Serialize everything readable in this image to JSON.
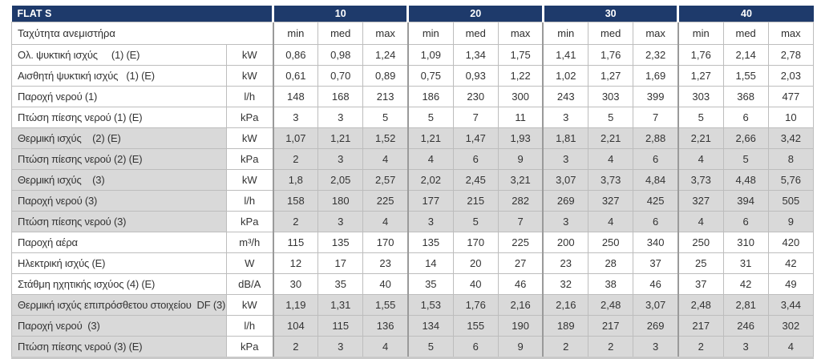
{
  "table": {
    "product": "FLAT S",
    "fan_speed_label": "Ταχύτητα ανεμιστήρα",
    "groups": [
      "10",
      "20",
      "30",
      "40"
    ],
    "subheaders": [
      "min",
      "med",
      "max"
    ],
    "colors": {
      "header_bg": "#1e3a6b",
      "header_text": "#ffffff",
      "gray_band": "#d9d9d9",
      "white_band": "#ffffff",
      "grid_line": "#bdbdbd"
    },
    "rows": [
      {
        "label": "Ολ. ψυκτική ισχύς     (1) (E)",
        "unit": "kW",
        "band": "white",
        "values": [
          "0,86",
          "0,98",
          "1,24",
          "1,09",
          "1,34",
          "1,75",
          "1,41",
          "1,76",
          "2,32",
          "1,76",
          "2,14",
          "2,78"
        ]
      },
      {
        "label": "Αισθητή ψυκτική ισχύς   (1) (E)",
        "unit": "kW",
        "band": "white",
        "values": [
          "0,61",
          "0,70",
          "0,89",
          "0,75",
          "0,93",
          "1,22",
          "1,02",
          "1,27",
          "1,69",
          "1,27",
          "1,55",
          "2,03"
        ]
      },
      {
        "label": "Παροχή νερού (1)",
        "unit": "l/h",
        "band": "white",
        "values": [
          "148",
          "168",
          "213",
          "186",
          "230",
          "300",
          "243",
          "303",
          "399",
          "303",
          "368",
          "477"
        ]
      },
      {
        "label": "Πτώση πίεσης νερού (1) (E)",
        "unit": "kPa",
        "band": "white",
        "values": [
          "3",
          "3",
          "5",
          "5",
          "7",
          "11",
          "3",
          "5",
          "7",
          "5",
          "6",
          "10"
        ]
      },
      {
        "label": "Θερμική ισχύς    (2) (E)",
        "unit": "kW",
        "band": "gray",
        "values": [
          "1,07",
          "1,21",
          "1,52",
          "1,21",
          "1,47",
          "1,93",
          "1,81",
          "2,21",
          "2,88",
          "2,21",
          "2,66",
          "3,42"
        ]
      },
      {
        "label": "Πτώση πίεσης νερού (2) (E)",
        "unit": "kPa",
        "band": "gray",
        "values": [
          "2",
          "3",
          "4",
          "4",
          "6",
          "9",
          "3",
          "4",
          "6",
          "4",
          "5",
          "8"
        ]
      },
      {
        "label": "Θερμική ισχύς    (3)",
        "unit": "kW",
        "band": "gray",
        "values": [
          "1,8",
          "2,05",
          "2,57",
          "2,02",
          "2,45",
          "3,21",
          "3,07",
          "3,73",
          "4,84",
          "3,73",
          "4,48",
          "5,76"
        ]
      },
      {
        "label": "Παροχή νερού (3)",
        "unit": "l/h",
        "band": "gray",
        "values": [
          "158",
          "180",
          "225",
          "177",
          "215",
          "282",
          "269",
          "327",
          "425",
          "327",
          "394",
          "505"
        ]
      },
      {
        "label": "Πτώση πίεσης νερού (3)",
        "unit": "kPa",
        "band": "gray",
        "values": [
          "2",
          "3",
          "4",
          "3",
          "5",
          "7",
          "3",
          "4",
          "6",
          "4",
          "6",
          "9"
        ]
      },
      {
        "label": "Παροχή αέρα",
        "unit": "m³/h",
        "band": "white",
        "values": [
          "115",
          "135",
          "170",
          "135",
          "170",
          "225",
          "200",
          "250",
          "340",
          "250",
          "310",
          "420"
        ]
      },
      {
        "label": "Ηλεκτρική ισχύς (E)",
        "unit": "W",
        "band": "white",
        "values": [
          "12",
          "17",
          "23",
          "14",
          "20",
          "27",
          "23",
          "28",
          "37",
          "25",
          "31",
          "42"
        ]
      },
      {
        "label": "Στάθμη ηχητικής ισχύος (4) (E)",
        "unit": "dB/A",
        "band": "white",
        "values": [
          "30",
          "35",
          "40",
          "35",
          "40",
          "46",
          "32",
          "38",
          "46",
          "37",
          "42",
          "49"
        ]
      },
      {
        "label": "Θερμική ισχύς επιπρόσθετου στοιχείου  DF (3) (E)",
        "unit": "kW",
        "band": "gray",
        "values": [
          "1,19",
          "1,31",
          "1,55",
          "1,53",
          "1,76",
          "2,16",
          "2,16",
          "2,48",
          "3,07",
          "2,48",
          "2,81",
          "3,44"
        ]
      },
      {
        "label": "Παροχή νερού  (3)",
        "unit": "l/h",
        "band": "gray",
        "values": [
          "104",
          "115",
          "136",
          "134",
          "155",
          "190",
          "189",
          "217",
          "269",
          "217",
          "246",
          "302"
        ]
      },
      {
        "label": "Πτώση πίεσης νερού (3) (E)",
        "unit": "kPa",
        "band": "gray",
        "values": [
          "2",
          "3",
          "4",
          "5",
          "6",
          "9",
          "2",
          "2",
          "3",
          "2",
          "3",
          "4"
        ]
      }
    ]
  }
}
